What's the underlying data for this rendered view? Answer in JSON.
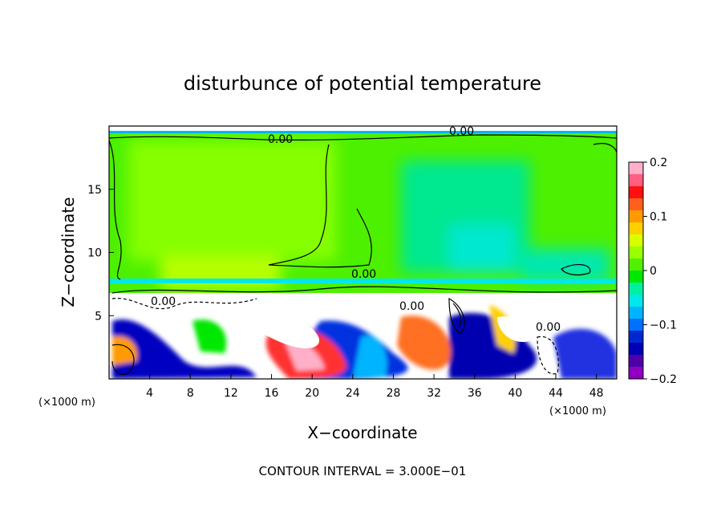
{
  "chart_data": {
    "type": "heatmap",
    "title": "disturbunce of potential temperature",
    "xlabel": "X−coordinate",
    "ylabel": "Z−coordinate",
    "x_unit": "(×1000 m)",
    "y_unit": "(×1000 m)",
    "xlim": [
      0,
      50
    ],
    "ylim": [
      0,
      20
    ],
    "x_ticks": [
      4,
      8,
      12,
      16,
      20,
      24,
      28,
      32,
      36,
      40,
      44,
      48
    ],
    "y_ticks": [
      5,
      10,
      15
    ],
    "colorbar": {
      "min": -0.2,
      "max": 0.2,
      "ticks": [
        "0.2",
        "0.1",
        "0",
        "−0.1",
        "−0.2"
      ],
      "tick_values": [
        0.2,
        0.1,
        0,
        -0.1,
        -0.2
      ],
      "colors": [
        "#ffb0c8",
        "#ff6080",
        "#ff1010",
        "#ff6020",
        "#ff9a00",
        "#ffd000",
        "#d8ff00",
        "#9aff00",
        "#50f000",
        "#00e800",
        "#00f0a0",
        "#00e8e8",
        "#00b4ff",
        "#0070ff",
        "#0028d0",
        "#0000b4",
        "#5000a8",
        "#9000c0"
      ]
    },
    "contour_labels": [
      "0.00",
      "0.00",
      "0.00",
      "0.00",
      "0.00",
      "0.00"
    ],
    "contour_interval_text": "CONTOUR INTERVAL = 3.000E−01"
  }
}
